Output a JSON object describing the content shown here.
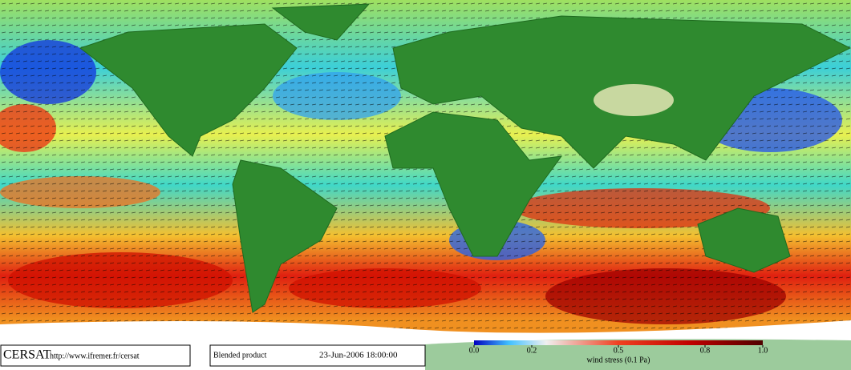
{
  "footer": {
    "logo": "CERSAT",
    "url": "http://www.ifremer.fr/cersat",
    "product": "Blended product",
    "timestamp": "23-Jun-2006 18:00:00"
  },
  "colorbar": {
    "label": "wind stress (0.1 Pa)",
    "range": [
      0,
      1
    ],
    "ticks": [
      {
        "value": 0,
        "label": "0.0"
      },
      0.2,
      0.5,
      0.8,
      {
        "value": 1,
        "label": "1.0"
      }
    ]
  }
}
